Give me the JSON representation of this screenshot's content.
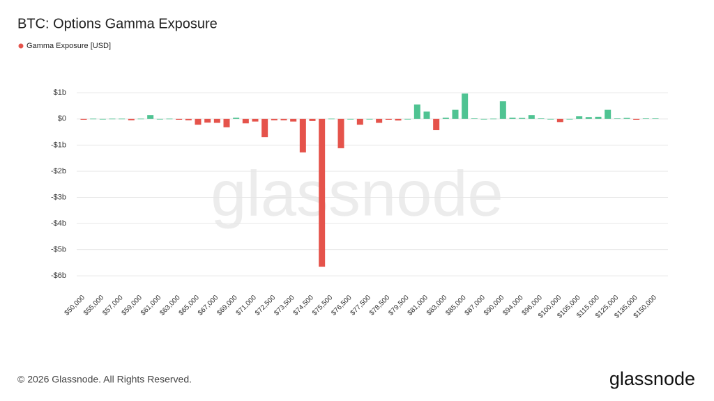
{
  "chart_data": {
    "type": "bar",
    "title": "BTC: Options Gamma Exposure",
    "watermark": "glassnode",
    "footer": "© 2026 Glassnode. All Rights Reserved.",
    "logo": "glassnode",
    "categories": [
      "$50,000",
      null,
      "$55,000",
      null,
      "$57,000",
      null,
      "$59,000",
      null,
      "$61,000",
      null,
      "$63,000",
      null,
      "$65,000",
      null,
      "$67,000",
      null,
      "$69,000",
      null,
      "$71,000",
      null,
      "$72,500",
      null,
      "$73,500",
      null,
      "$74,500",
      null,
      "$75,500",
      null,
      "$76,500",
      null,
      "$77,500",
      null,
      "$78,500",
      null,
      "$79,500",
      null,
      "$81,000",
      null,
      "$83,000",
      null,
      "$85,000",
      null,
      "$87,000",
      null,
      "$90,000",
      null,
      "$94,000",
      null,
      "$96,000",
      null,
      "$100,000",
      null,
      "$105,000",
      null,
      "$115,000",
      null,
      "$125,000",
      null,
      "$135,000",
      null,
      "$150,000"
    ],
    "series": [
      {
        "name": "Gamma Exposure [USD]",
        "color": "#e5534b",
        "values": [
          -0.03,
          0.01,
          0,
          0.01,
          0.01,
          -0.05,
          0.01,
          0.15,
          0,
          0.01,
          -0.03,
          -0.05,
          -0.22,
          -0.14,
          -0.15,
          -0.32,
          0.05,
          -0.17,
          -0.1,
          -0.7,
          -0.05,
          -0.05,
          -0.1,
          -1.28,
          -0.08,
          -5.65,
          0.01,
          -1.12,
          0,
          -0.22,
          0,
          -0.15,
          -0.03,
          -0.06,
          0,
          0.55,
          0.28,
          -0.43,
          0.05,
          0.35,
          0.97,
          0.02,
          0,
          0.01,
          0.68,
          0.05,
          0.04,
          0.15,
          0.02,
          0,
          -0.12,
          0,
          0.1,
          0.07,
          0.08,
          0.35,
          0.02,
          0.04,
          -0.03,
          0.02,
          0.02
        ]
      }
    ],
    "positive_color": "#4fc392",
    "negative_color": "#e5534b",
    "ylim": [
      -6.5,
      1.3
    ],
    "yticks": [
      {
        "value": -6,
        "label": "-$6b"
      },
      {
        "value": -5,
        "label": "-$5b"
      },
      {
        "value": -4,
        "label": "-$4b"
      },
      {
        "value": -3,
        "label": "-$3b"
      },
      {
        "value": -2,
        "label": "-$2b"
      },
      {
        "value": -1,
        "label": "-$1b"
      },
      {
        "value": 0,
        "label": "$0"
      },
      {
        "value": 1,
        "label": "$1b"
      }
    ],
    "grid": true
  }
}
